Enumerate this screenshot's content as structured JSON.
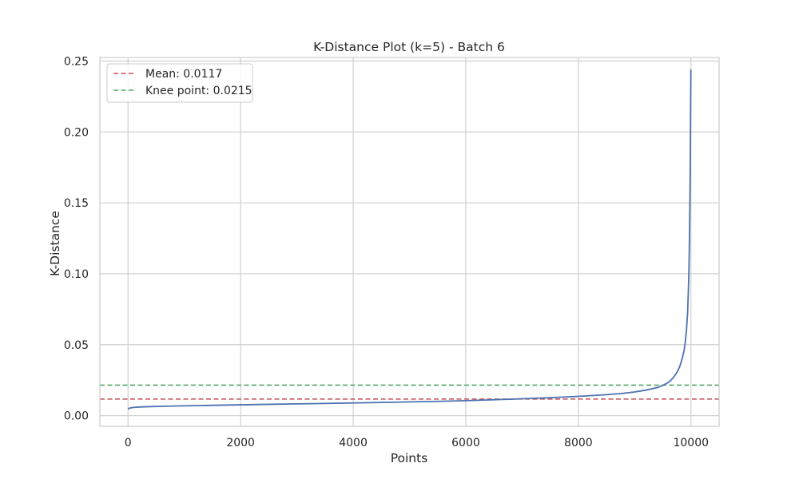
{
  "chart_data": {
    "type": "line",
    "title": "K-Distance Plot (k=5) - Batch 6",
    "xlabel": "Points",
    "ylabel": "K-Distance",
    "xlim": [
      -500,
      10500
    ],
    "ylim": [
      -0.0075,
      0.2525
    ],
    "xticks": [
      0,
      2000,
      4000,
      6000,
      8000,
      10000
    ],
    "xtick_labels": [
      "0",
      "2000",
      "4000",
      "6000",
      "8000",
      "10000"
    ],
    "yticks": [
      0.0,
      0.05,
      0.1,
      0.15,
      0.2,
      0.25
    ],
    "ytick_labels": [
      "0.00",
      "0.05",
      "0.10",
      "0.15",
      "0.20",
      "0.25"
    ],
    "grid": true,
    "legend_position": "top-left",
    "series": [
      {
        "color": "#4c72b0",
        "x": [
          0,
          20,
          60,
          100,
          200,
          400,
          800,
          1500,
          2500,
          3500,
          4500,
          5500,
          6000,
          6500,
          7000,
          7500,
          8000,
          8500,
          8800,
          9000,
          9200,
          9400,
          9500,
          9600,
          9650,
          9700,
          9750,
          9800,
          9850,
          9880,
          9900,
          9920,
          9940,
          9960,
          9970,
          9980,
          9985,
          9990,
          9995,
          9999
        ],
        "y": [
          0.0046,
          0.0052,
          0.0056,
          0.0058,
          0.0061,
          0.0064,
          0.0068,
          0.0073,
          0.008,
          0.0086,
          0.0093,
          0.0101,
          0.0106,
          0.0112,
          0.0119,
          0.0127,
          0.0136,
          0.0148,
          0.0158,
          0.0167,
          0.018,
          0.0198,
          0.0213,
          0.0235,
          0.0252,
          0.0275,
          0.0305,
          0.0345,
          0.041,
          0.0465,
          0.052,
          0.06,
          0.072,
          0.095,
          0.115,
          0.145,
          0.165,
          0.19,
          0.22,
          0.244
        ]
      }
    ],
    "hlines": [
      {
        "label": "Mean: 0.0117",
        "y": 0.0117,
        "color": "#c44e52"
      },
      {
        "label": "Knee point: 0.0215",
        "y": 0.0215,
        "color": "#55a868"
      }
    ]
  }
}
